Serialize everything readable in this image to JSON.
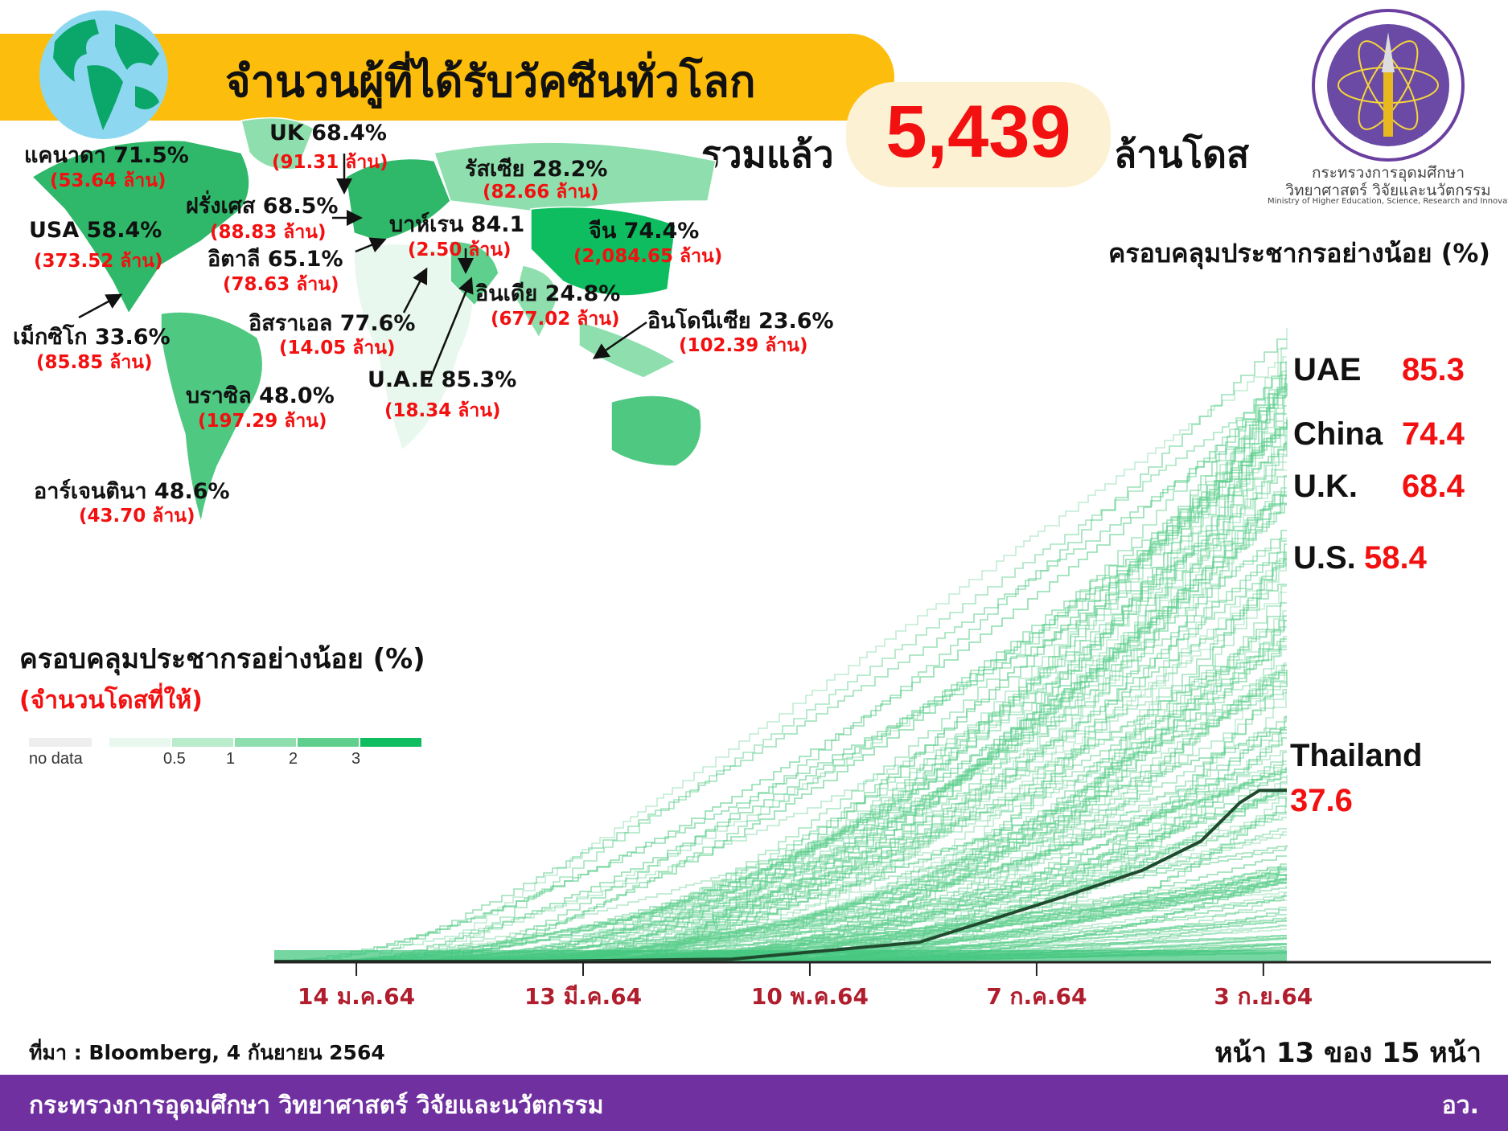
{
  "header": {
    "title": "จำนวนผู้ที่ได้รับวัคซีนทั่วโลก",
    "total_label": "รวมแล้ว",
    "total_value": "5,439",
    "total_unit": "ล้านโดส",
    "banner_color": "#fdbd0c"
  },
  "logo": {
    "line1": "กระทรวงการอุดมศึกษา",
    "line2": "วิทยาศาสตร์ วิจัยและนวัตกรรม",
    "line3": "Ministry of Higher Education, Science, Research and Innovation"
  },
  "map": {
    "countries": [
      {
        "name": "แคนาดา 71.5%",
        "doses": "(53.64 ล้าน)"
      },
      {
        "name": "UK 68.4%",
        "doses": "(91.31 ล้าน)"
      },
      {
        "name": "รัสเซีย 28.2%",
        "doses": "(82.66 ล้าน)"
      },
      {
        "name": "ฝรั่งเศส 68.5%",
        "doses": "(88.83 ล้าน)"
      },
      {
        "name": "USA 58.4%",
        "doses": "(373.52 ล้าน)"
      },
      {
        "name": "อิตาลี 65.1%",
        "doses": "(78.63 ล้าน)"
      },
      {
        "name": "บาห์เรน 84.1",
        "doses": "(2.50 ล้าน)"
      },
      {
        "name": "จีน 74.4%",
        "doses": "(2,084.65 ล้าน)"
      },
      {
        "name": "อินเดีย 24.8%",
        "doses": "(677.02 ล้าน)"
      },
      {
        "name": "อินโดนีเซีย 23.6%",
        "doses": "(102.39 ล้าน)"
      },
      {
        "name": "อิสราเอล 77.6%",
        "doses": "(14.05 ล้าน)"
      },
      {
        "name": "เม็กซิโก 33.6%",
        "doses": "(85.85 ล้าน)"
      },
      {
        "name": "U.A.E 85.3%",
        "doses": "(18.34 ล้าน)"
      },
      {
        "name": "บราซิล 48.0%",
        "doses": "(197.29 ล้าน)"
      },
      {
        "name": "อาร์เจนตินา 48.6%",
        "doses": "(43.70 ล้าน)"
      }
    ],
    "legend": {
      "title": "ครอบคลุมประชากรอย่างน้อย (%)",
      "subtitle": "(จำนวนโดสที่ให้)",
      "no_data": "no data",
      "ticks": [
        "0.5",
        "1",
        "2",
        "3"
      ],
      "colors": [
        "#e8f8ee",
        "#b8ecca",
        "#8fdfae",
        "#5fcf8e",
        "#0dbd5f"
      ],
      "no_data_color": "#eeeeee"
    }
  },
  "chart_data": {
    "type": "line",
    "ylabel": "ครอบคลุมประชากรอย่างน้อย (%)",
    "x_tick_labels": [
      "14 ม.ค.64",
      "13 มี.ค.64",
      "10 พ.ค.64",
      "7 ก.ค.64",
      "3 ก.ย.64"
    ],
    "x_ticks": [
      "2021-01-14",
      "2021-03-13",
      "2021-05-10",
      "2021-07-07",
      "2021-09-03"
    ],
    "xlim": [
      "2020-12-24",
      "2021-09-09"
    ],
    "ylim": [
      0,
      140
    ],
    "highlighted": [
      {
        "name": "UAE",
        "value": "85.3"
      },
      {
        "name": "China",
        "value": "74.4"
      },
      {
        "name": "U.K.",
        "value": "68.4"
      },
      {
        "name": "U.S.",
        "value": "58.4"
      }
    ],
    "series": [
      {
        "name": "Thailand",
        "value_label": "37.6",
        "color": "#1f4a2e",
        "x": [
          "2021-03-02",
          "2021-04-20",
          "2021-06-07",
          "2021-07-12",
          "2021-08-03",
          "2021-08-18",
          "2021-08-28",
          "2021-09-02",
          "2021-09-09"
        ],
        "y": [
          0,
          0.5,
          4.2,
          13.7,
          20,
          26.4,
          34.9,
          37.6,
          37.6
        ]
      }
    ],
    "other_series_color": "#5fcf8e"
  },
  "footer": {
    "source": "ที่มา : Bloomberg, 4 กันยายน 2564",
    "page": "หน้า 13 ของ 15 หน้า",
    "ministry": "กระทรวงการอุดมศึกษา วิทยาศาสตร์ วิจัยและนวัตกรรม",
    "abbr": "อว.",
    "color": "#7030a0"
  }
}
